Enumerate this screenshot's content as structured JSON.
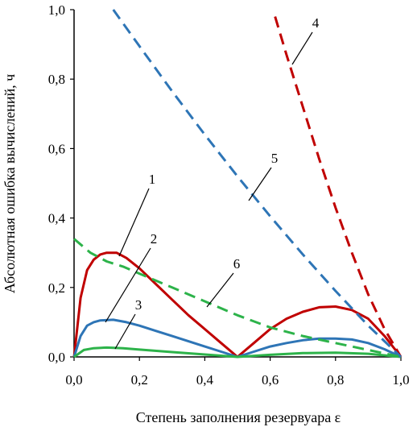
{
  "chart_data": {
    "type": "line",
    "xlabel": "Степень заполнения резервуара ε",
    "ylabel": "Абсолютная ошибка вычислений, ч",
    "xlim": [
      0,
      1
    ],
    "ylim": [
      0,
      1
    ],
    "x_ticks": [
      "0,0",
      "0,2",
      "0,4",
      "0,6",
      "0,8",
      "1,0"
    ],
    "y_ticks": [
      "0,0",
      "0,2",
      "0,4",
      "0,6",
      "0,8",
      "1,0"
    ],
    "grid": false,
    "legend": "none",
    "series": [
      {
        "label": "1",
        "color": "#C00000",
        "style": "solid",
        "points": [
          [
            0.0,
            0.0
          ],
          [
            0.02,
            0.17
          ],
          [
            0.04,
            0.25
          ],
          [
            0.06,
            0.28
          ],
          [
            0.08,
            0.295
          ],
          [
            0.1,
            0.3
          ],
          [
            0.13,
            0.3
          ],
          [
            0.16,
            0.285
          ],
          [
            0.2,
            0.255
          ],
          [
            0.25,
            0.21
          ],
          [
            0.3,
            0.165
          ],
          [
            0.35,
            0.12
          ],
          [
            0.4,
            0.08
          ],
          [
            0.45,
            0.04
          ],
          [
            0.5,
            0.0
          ],
          [
            0.55,
            0.04
          ],
          [
            0.6,
            0.08
          ],
          [
            0.65,
            0.11
          ],
          [
            0.7,
            0.13
          ],
          [
            0.75,
            0.143
          ],
          [
            0.8,
            0.145
          ],
          [
            0.85,
            0.135
          ],
          [
            0.9,
            0.11
          ],
          [
            0.95,
            0.06
          ],
          [
            1.0,
            0.0
          ]
        ]
      },
      {
        "label": "2",
        "color": "#2E75B6",
        "style": "solid",
        "points": [
          [
            0.0,
            0.0
          ],
          [
            0.02,
            0.06
          ],
          [
            0.04,
            0.09
          ],
          [
            0.06,
            0.1
          ],
          [
            0.08,
            0.105
          ],
          [
            0.12,
            0.107
          ],
          [
            0.16,
            0.1
          ],
          [
            0.2,
            0.09
          ],
          [
            0.25,
            0.075
          ],
          [
            0.3,
            0.06
          ],
          [
            0.35,
            0.045
          ],
          [
            0.4,
            0.03
          ],
          [
            0.45,
            0.015
          ],
          [
            0.5,
            0.0
          ],
          [
            0.55,
            0.015
          ],
          [
            0.6,
            0.03
          ],
          [
            0.65,
            0.04
          ],
          [
            0.7,
            0.048
          ],
          [
            0.75,
            0.053
          ],
          [
            0.8,
            0.053
          ],
          [
            0.85,
            0.05
          ],
          [
            0.9,
            0.04
          ],
          [
            0.95,
            0.022
          ],
          [
            1.0,
            0.0
          ]
        ]
      },
      {
        "label": "3",
        "color": "#2DB34A",
        "style": "solid",
        "points": [
          [
            0.0,
            0.0
          ],
          [
            0.03,
            0.02
          ],
          [
            0.06,
            0.025
          ],
          [
            0.1,
            0.027
          ],
          [
            0.15,
            0.025
          ],
          [
            0.2,
            0.021
          ],
          [
            0.3,
            0.014
          ],
          [
            0.4,
            0.007
          ],
          [
            0.5,
            0.0
          ],
          [
            0.6,
            0.006
          ],
          [
            0.7,
            0.011
          ],
          [
            0.8,
            0.012
          ],
          [
            0.9,
            0.009
          ],
          [
            1.0,
            0.0
          ]
        ]
      },
      {
        "label": "4",
        "color": "#C00000",
        "style": "dashed",
        "points": [
          [
            0.615,
            0.98
          ],
          [
            0.65,
            0.87
          ],
          [
            0.7,
            0.72
          ],
          [
            0.75,
            0.57
          ],
          [
            0.8,
            0.43
          ],
          [
            0.85,
            0.3
          ],
          [
            0.9,
            0.18
          ],
          [
            0.95,
            0.08
          ],
          [
            1.0,
            0.0
          ]
        ]
      },
      {
        "label": "5",
        "color": "#2E75B6",
        "style": "dashed",
        "points": [
          [
            0.12,
            1.0
          ],
          [
            0.2,
            0.895
          ],
          [
            0.3,
            0.765
          ],
          [
            0.4,
            0.64
          ],
          [
            0.5,
            0.52
          ],
          [
            0.6,
            0.405
          ],
          [
            0.7,
            0.295
          ],
          [
            0.8,
            0.19
          ],
          [
            0.9,
            0.09
          ],
          [
            1.0,
            0.0
          ]
        ]
      },
      {
        "label": "6",
        "color": "#2DB34A",
        "style": "dashed",
        "points": [
          [
            0.0,
            0.34
          ],
          [
            0.05,
            0.3
          ],
          [
            0.1,
            0.275
          ],
          [
            0.15,
            0.26
          ],
          [
            0.2,
            0.24
          ],
          [
            0.3,
            0.2
          ],
          [
            0.4,
            0.16
          ],
          [
            0.5,
            0.12
          ],
          [
            0.6,
            0.085
          ],
          [
            0.7,
            0.06
          ],
          [
            0.8,
            0.04
          ],
          [
            0.9,
            0.02
          ],
          [
            1.0,
            0.0
          ]
        ]
      }
    ]
  }
}
